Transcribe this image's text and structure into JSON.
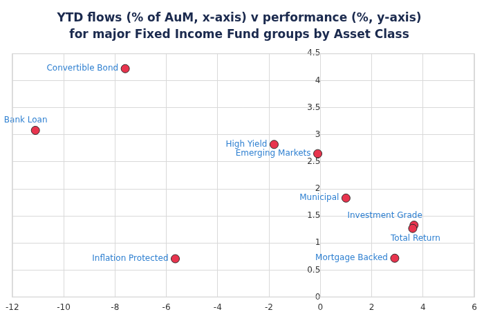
{
  "chart_data": {
    "type": "scatter",
    "title": [
      "YTD flows (% of AuM, x-axis) v performance (%, y-axis)",
      "for major Fixed Income Fund groups by Asset Class"
    ],
    "categories": [
      "Convertible Bond",
      "Bank Loan",
      "High Yield",
      "Emerging Markets",
      "Municipal",
      "Investment Grade",
      "Total Return",
      "Inflation Protected",
      "Mortgage Backed"
    ],
    "x": [
      -7.6,
      -11.1,
      -1.8,
      -0.1,
      1.0,
      3.65,
      3.6,
      -5.65,
      2.9
    ],
    "values": [
      4.22,
      3.08,
      2.82,
      2.65,
      1.83,
      1.33,
      1.27,
      0.71,
      0.72
    ],
    "color": "#e8344e",
    "marker": "circle",
    "xlim": [
      -12,
      6
    ],
    "xticks": [
      -12,
      -10,
      -8,
      -6,
      -4,
      -2,
      0,
      2,
      4,
      6
    ],
    "ylim": [
      0,
      4.5
    ],
    "yticks": [
      0,
      0.5,
      1,
      1.5,
      2,
      2.5,
      3,
      3.5,
      4,
      4.5
    ],
    "grid": true
  }
}
